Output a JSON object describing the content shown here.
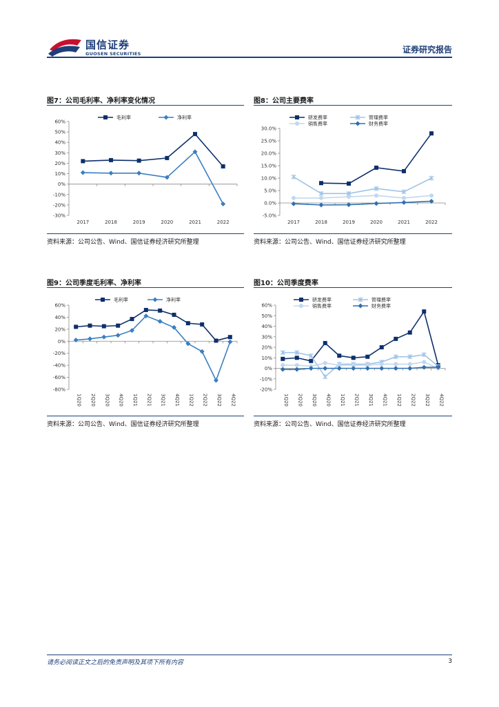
{
  "header": {
    "logo_cn": "国信证券",
    "logo_en": "GUOSEN SECURITIES",
    "report_type": "证券研究报告",
    "colors": {
      "brand_blue": "#1f3f7a",
      "brand_red": "#c8102e"
    }
  },
  "figures": [
    {
      "title": "图7：公司毛利率、净利率变化情况",
      "source": "资料来源：公司公告、Wind、国信证券经济研究所整理"
    },
    {
      "title": "图8：公司主要费率",
      "source": "资料来源：公司公告、Wind、国信证券经济研究所整理"
    },
    {
      "title": "图9：公司季度毛利率、净利率",
      "source": "资料来源：公司公告、Wind、国信证券经济研究所整理"
    },
    {
      "title": "图10：公司季度费率",
      "source": "资料来源：公司公告、Wind、国信证券经济研究所整理"
    }
  ],
  "chart_data": [
    {
      "type": "line",
      "categories": [
        "2017",
        "2018",
        "2019",
        "2020",
        "2021",
        "2022"
      ],
      "ylim": [
        -30,
        60
      ],
      "yticks": [
        -30,
        -20,
        -10,
        0,
        10,
        20,
        30,
        40,
        50,
        60
      ],
      "ytick_format": "pct0",
      "legend_position": "top",
      "series": [
        {
          "name": "毛利率",
          "color": "#0d2f6b",
          "marker": "square",
          "values": [
            22,
            23,
            22.5,
            25,
            48,
            17
          ]
        },
        {
          "name": "净利率",
          "color": "#3a7fc1",
          "marker": "diamond",
          "values": [
            11,
            10.5,
            10.5,
            6.5,
            31,
            -19
          ]
        }
      ]
    },
    {
      "type": "line",
      "categories": [
        "2017",
        "2018",
        "2019",
        "2020",
        "2021",
        "2022"
      ],
      "ylim": [
        -5,
        30
      ],
      "yticks": [
        -5,
        0,
        5,
        10,
        15,
        20,
        25,
        30
      ],
      "ytick_format": "pct1",
      "legend_position": "top",
      "series": [
        {
          "name": "研发费率",
          "color": "#0d2f6b",
          "marker": "square",
          "values": [
            null,
            8,
            7.8,
            14.2,
            12.8,
            28
          ]
        },
        {
          "name": "管理费率",
          "color": "#9fc3e6",
          "marker": "star",
          "values": [
            10.5,
            3.8,
            3.8,
            5.8,
            4.5,
            10
          ]
        },
        {
          "name": "销售费率",
          "color": "#c0d8ef",
          "marker": "circle",
          "values": [
            2,
            2,
            2.5,
            3,
            2,
            3
          ]
        },
        {
          "name": "财务费率",
          "color": "#2f6fb0",
          "marker": "diamond",
          "values": [
            -0.3,
            -0.8,
            -0.7,
            -0.2,
            0.2,
            0.7
          ]
        }
      ]
    },
    {
      "type": "line",
      "categories": [
        "1Q20",
        "2Q20",
        "3Q20",
        "4Q20",
        "1Q21",
        "2Q21",
        "3Q21",
        "4Q21",
        "1Q22",
        "2Q22",
        "3Q22",
        "4Q22"
      ],
      "ylim": [
        -80,
        60
      ],
      "yticks": [
        -80,
        -60,
        -40,
        -20,
        0,
        20,
        40,
        60
      ],
      "ytick_format": "pct0",
      "legend_position": "top",
      "series": [
        {
          "name": "毛利率",
          "color": "#0d2f6b",
          "marker": "square",
          "values": [
            24,
            26,
            25,
            26,
            37,
            52,
            51,
            44,
            30,
            28,
            1,
            7
          ]
        },
        {
          "name": "净利率",
          "color": "#3a7fc1",
          "marker": "diamond",
          "values": [
            2,
            4,
            7,
            10,
            18,
            42,
            33,
            23,
            -4,
            -17,
            -65,
            -1
          ]
        }
      ]
    },
    {
      "type": "line",
      "categories": [
        "1Q20",
        "2Q20",
        "3Q20",
        "4Q20",
        "1Q21",
        "2Q21",
        "3Q21",
        "4Q21",
        "1Q22",
        "2Q22",
        "3Q22",
        "4Q22"
      ],
      "ylim": [
        -20,
        60
      ],
      "yticks": [
        -20,
        -10,
        0,
        10,
        20,
        30,
        40,
        50,
        60
      ],
      "ytick_format": "pct0",
      "legend_position": "top",
      "series": [
        {
          "name": "研发费率",
          "color": "#0d2f6b",
          "marker": "square",
          "values": [
            9,
            10,
            7,
            24,
            12,
            10,
            11,
            20,
            28,
            34,
            54,
            3
          ]
        },
        {
          "name": "管理费率",
          "color": "#9fc3e6",
          "marker": "star",
          "values": [
            15,
            15,
            12,
            -8,
            4,
            4,
            4,
            6,
            11,
            11,
            13,
            2
          ]
        },
        {
          "name": "销售费率",
          "color": "#c0d8ef",
          "marker": "circle",
          "values": [
            3,
            3,
            2,
            5,
            3,
            3,
            3,
            4,
            4,
            4,
            6,
            0
          ]
        },
        {
          "name": "财务费率",
          "color": "#2f6fb0",
          "marker": "diamond",
          "values": [
            -1,
            -1,
            0,
            0,
            0,
            0,
            0,
            0,
            0,
            0,
            1,
            1
          ]
        }
      ]
    }
  ],
  "footer": {
    "disclaimer": "请务必阅读正文之后的免责声明及其项下所有内容",
    "page": "3"
  }
}
